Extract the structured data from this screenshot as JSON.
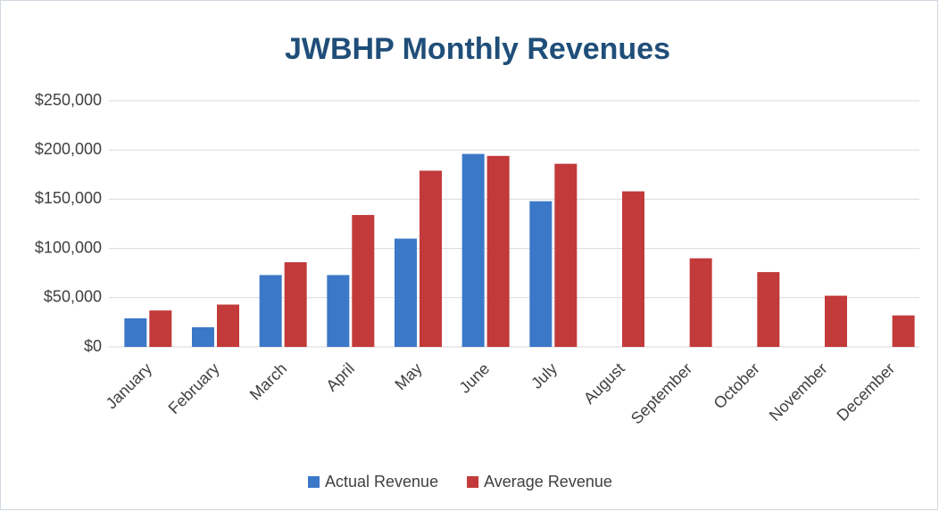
{
  "chart_data": {
    "type": "bar",
    "title": "JWBHP Monthly Revenues",
    "categories": [
      "January",
      "February",
      "March",
      "April",
      "May",
      "June",
      "July",
      "August",
      "September",
      "October",
      "November",
      "December"
    ],
    "series": [
      {
        "name": "Actual Revenue",
        "color": "#3b78c8",
        "values": [
          29000,
          20000,
          73000,
          73000,
          110000,
          196000,
          148000,
          null,
          null,
          null,
          null,
          null
        ]
      },
      {
        "name": "Average Revenue",
        "color": "#c23a3a",
        "values": [
          37000,
          43000,
          86000,
          134000,
          179000,
          194000,
          186000,
          158000,
          90000,
          76000,
          52000,
          32000
        ]
      }
    ],
    "ylim": [
      0,
      250000
    ],
    "yticks": [
      {
        "value": 0,
        "label": "$0"
      },
      {
        "value": 50000,
        "label": "$50,000"
      },
      {
        "value": 100000,
        "label": "$100,000"
      },
      {
        "value": 150000,
        "label": "$150,000"
      },
      {
        "value": 200000,
        "label": "$200,000"
      },
      {
        "value": 250000,
        "label": "$250,000"
      }
    ],
    "grid": true,
    "legend": "bottom"
  }
}
